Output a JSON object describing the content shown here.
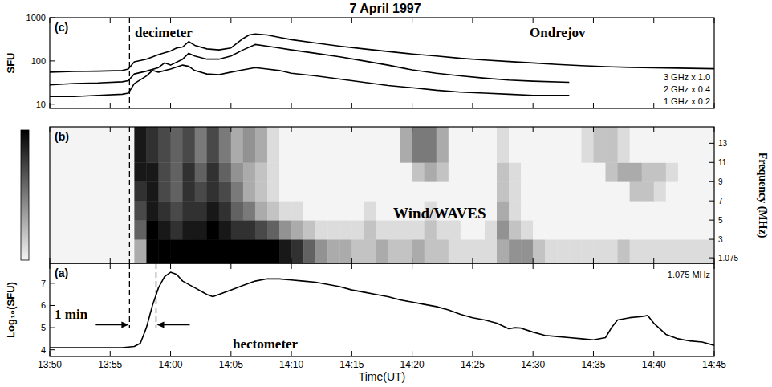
{
  "title": "7 April 1997",
  "chart_data": [
    {
      "type": "line",
      "label": "(c)",
      "ylabel": "SFU",
      "log": "y",
      "annotations": [
        "decimeter",
        "Ondrejov"
      ],
      "xlim": [
        0,
        55
      ],
      "xticks": [
        0,
        5,
        10,
        15,
        20,
        25,
        30,
        35,
        40,
        45,
        50,
        55
      ],
      "ylim": [
        8,
        1000
      ],
      "yticks": [
        10,
        100,
        1000
      ],
      "tick_labels": "y",
      "vlines": [
        6.6
      ],
      "series": [
        {
          "name": "3 GHz x 1.0",
          "color": "#000000",
          "x": [
            0,
            2,
            4,
            6,
            6.5,
            7,
            8,
            9,
            10,
            10.5,
            11,
            11.5,
            12,
            13,
            14,
            15,
            16,
            16.5,
            17,
            18,
            19,
            20,
            22,
            24,
            26,
            28,
            30,
            32,
            34,
            36,
            38,
            40,
            42,
            44,
            46,
            48,
            50,
            52,
            55
          ],
          "values": [
            55,
            57,
            58,
            60,
            65,
            95,
            110,
            140,
            170,
            200,
            210,
            280,
            230,
            190,
            180,
            200,
            330,
            400,
            420,
            400,
            350,
            310,
            260,
            220,
            190,
            165,
            145,
            130,
            115,
            105,
            97,
            90,
            83,
            78,
            74,
            71,
            69,
            68,
            66
          ]
        },
        {
          "name": "2 GHz x 0.4",
          "color": "#000000",
          "x": [
            0,
            2,
            4,
            6,
            6.5,
            7,
            8,
            9,
            9.5,
            10,
            11,
            11.5,
            12,
            13,
            14,
            15,
            16,
            17,
            18,
            19,
            20,
            22,
            24,
            26,
            28,
            30,
            32,
            34,
            36,
            38,
            40,
            43
          ],
          "values": [
            28,
            30,
            31,
            33,
            35,
            50,
            58,
            70,
            90,
            80,
            110,
            150,
            130,
            110,
            110,
            130,
            180,
            240,
            220,
            200,
            180,
            150,
            125,
            100,
            80,
            62,
            52,
            45,
            40,
            36,
            34,
            32
          ]
        },
        {
          "name": "1 GHz x 0.2",
          "color": "#000000",
          "x": [
            0,
            2,
            4,
            6,
            6.5,
            7,
            8,
            8.5,
            9,
            10,
            11,
            11.5,
            12,
            13,
            14,
            15,
            16,
            17,
            18,
            19,
            20,
            22,
            24,
            26,
            28,
            30,
            32,
            34,
            36,
            38,
            40,
            43
          ],
          "values": [
            15,
            15,
            16,
            17,
            18,
            30,
            45,
            60,
            55,
            65,
            80,
            75,
            60,
            50,
            48,
            55,
            62,
            70,
            65,
            60,
            52,
            45,
            38,
            32,
            27,
            24,
            21,
            19,
            18,
            17,
            16,
            16
          ]
        }
      ]
    },
    {
      "type": "heatmap",
      "label": "(b)",
      "ylabel": "Frequency (MHz)",
      "annotations": [
        "Wind/WAVES"
      ],
      "xlim": [
        0,
        55
      ],
      "xticks": [
        0,
        5,
        10,
        15,
        20,
        25,
        30,
        35,
        40,
        45,
        50,
        55
      ],
      "ylim": [
        0.5,
        14.7
      ],
      "yticks": [
        1.075,
        3,
        5,
        7,
        9,
        11,
        13
      ],
      "tick_labels": "y",
      "vlines": [
        6.6
      ],
      "x_edges": [
        0,
        1,
        2,
        3,
        4,
        5,
        6,
        7,
        8,
        9,
        10,
        11,
        12,
        13,
        14,
        15,
        16,
        17,
        18,
        19,
        20,
        21,
        22,
        23,
        24,
        25,
        26,
        27,
        28,
        29,
        30,
        31,
        32,
        33,
        34,
        35,
        36,
        37,
        38,
        39,
        40,
        41,
        42,
        43,
        44,
        45,
        46,
        47,
        48,
        49,
        50,
        51,
        52,
        53,
        54,
        55
      ],
      "y_edges": [
        0.5,
        3,
        5,
        7,
        9,
        11,
        14.7
      ],
      "colorbar_range": [
        0,
        10
      ],
      "cells": [
        [
          0,
          0,
          0,
          0,
          0,
          0,
          0,
          3,
          10,
          10,
          10,
          10,
          10,
          10,
          10,
          10,
          10,
          10,
          10,
          9,
          8,
          6,
          4,
          3,
          3,
          2,
          2,
          3,
          2,
          2,
          3,
          2,
          2,
          1,
          1,
          1,
          1,
          3,
          4,
          4,
          2,
          1,
          1,
          1,
          1,
          1,
          1,
          2,
          1,
          1,
          1,
          1,
          1,
          1,
          1
        ],
        [
          0,
          0,
          0,
          0,
          0,
          0,
          0,
          6,
          10,
          9,
          8,
          9,
          9,
          10,
          9,
          8,
          8,
          7,
          6,
          4,
          3,
          2,
          1,
          1,
          1,
          1,
          2,
          1,
          1,
          1,
          1,
          2,
          1,
          1,
          0,
          0,
          1,
          4,
          2,
          1,
          0,
          0,
          0,
          0,
          0,
          0,
          0,
          0,
          0,
          0,
          0,
          0,
          0,
          0,
          0
        ],
        [
          0,
          0,
          0,
          0,
          0,
          0,
          0,
          7,
          9,
          8,
          7,
          8,
          8,
          9,
          8,
          6,
          5,
          3,
          2,
          1,
          1,
          0,
          0,
          0,
          0,
          0,
          1,
          0,
          0,
          0,
          0,
          1,
          0,
          0,
          0,
          0,
          0,
          3,
          1,
          0,
          0,
          0,
          0,
          0,
          0,
          0,
          0,
          0,
          0,
          0,
          0,
          0,
          0,
          0,
          0
        ],
        [
          0,
          0,
          0,
          0,
          0,
          0,
          0,
          8,
          9,
          7,
          6,
          8,
          7,
          8,
          7,
          5,
          3,
          2,
          1,
          0,
          0,
          0,
          0,
          0,
          0,
          0,
          0,
          0,
          0,
          0,
          0,
          0,
          0,
          0,
          0,
          0,
          0,
          2,
          1,
          0,
          0,
          0,
          0,
          0,
          0,
          0,
          0,
          0,
          2,
          2,
          1,
          0,
          0,
          0,
          0
        ],
        [
          0,
          0,
          0,
          0,
          0,
          0,
          0,
          9,
          9,
          7,
          6,
          8,
          6,
          8,
          6,
          4,
          3,
          2,
          1,
          0,
          0,
          0,
          0,
          0,
          0,
          0,
          0,
          0,
          0,
          0,
          2,
          3,
          2,
          0,
          0,
          0,
          0,
          2,
          1,
          0,
          0,
          0,
          0,
          0,
          0,
          0,
          2,
          3,
          3,
          2,
          2,
          1,
          0,
          0,
          0
        ],
        [
          0,
          0,
          0,
          0,
          0,
          0,
          0,
          9,
          8,
          7,
          6,
          7,
          5,
          7,
          5,
          3,
          4,
          3,
          1,
          0,
          0,
          0,
          0,
          0,
          0,
          0,
          0,
          0,
          0,
          3,
          5,
          5,
          3,
          0,
          0,
          0,
          0,
          1,
          0,
          0,
          0,
          0,
          0,
          0,
          1,
          2,
          2,
          1,
          0,
          0,
          0,
          0,
          0,
          0,
          0
        ]
      ]
    },
    {
      "type": "line",
      "label": "(a)",
      "ylabel": "Log₁₀(SFU)",
      "xlabel": "Time(UT)",
      "annotations": [
        "1 min",
        "hectometer"
      ],
      "xlim": [
        0,
        55
      ],
      "xticks": [
        {
          "value": 0,
          "label": "13:50"
        },
        {
          "value": 5,
          "label": "13:55"
        },
        {
          "value": 10,
          "label": "14:00"
        },
        {
          "value": 15,
          "label": "14:05"
        },
        {
          "value": 20,
          "label": "14:10"
        },
        {
          "value": 25,
          "label": "14:15"
        },
        {
          "value": 30,
          "label": "14:20"
        },
        {
          "value": 35,
          "label": "14:25"
        },
        {
          "value": 40,
          "label": "14:30"
        },
        {
          "value": 45,
          "label": "14:35"
        },
        {
          "value": 50,
          "label": "14:40"
        },
        {
          "value": 55,
          "label": "14:45"
        }
      ],
      "ylim": [
        3.7,
        7.9
      ],
      "yticks": [
        4,
        5,
        6,
        7
      ],
      "vlines": [
        6.6,
        8.8
      ],
      "series": [
        {
          "name": "1.075 MHz",
          "color": "#000000",
          "x": [
            0,
            2,
            4,
            6,
            7,
            7.5,
            8,
            8.5,
            9,
            9.5,
            10,
            10.5,
            11,
            12,
            13,
            13.5,
            14,
            15,
            16,
            17,
            18,
            19,
            20,
            21,
            22,
            23,
            24,
            25,
            26,
            27,
            28,
            29,
            30,
            31,
            32,
            33,
            34,
            35,
            36,
            37,
            38,
            38.5,
            39,
            40,
            41,
            42,
            43,
            44,
            45,
            46,
            46.5,
            47,
            48,
            49,
            49.5,
            50,
            51,
            52,
            53,
            54,
            55
          ],
          "values": [
            4.1,
            4.1,
            4.1,
            4.1,
            4.15,
            4.3,
            5.0,
            6.0,
            6.8,
            7.3,
            7.5,
            7.4,
            7.1,
            6.8,
            6.5,
            6.4,
            6.5,
            6.7,
            6.9,
            7.1,
            7.2,
            7.2,
            7.15,
            7.1,
            7.05,
            6.95,
            6.85,
            6.7,
            6.6,
            6.5,
            6.4,
            6.25,
            6.15,
            6.05,
            5.95,
            5.8,
            5.6,
            5.45,
            5.35,
            5.2,
            4.95,
            5.0,
            4.98,
            4.8,
            4.65,
            4.6,
            4.55,
            4.5,
            4.45,
            4.55,
            5.0,
            5.35,
            5.45,
            5.5,
            5.55,
            5.2,
            4.7,
            4.5,
            4.4,
            4.35,
            4.2
          ]
        }
      ]
    }
  ]
}
